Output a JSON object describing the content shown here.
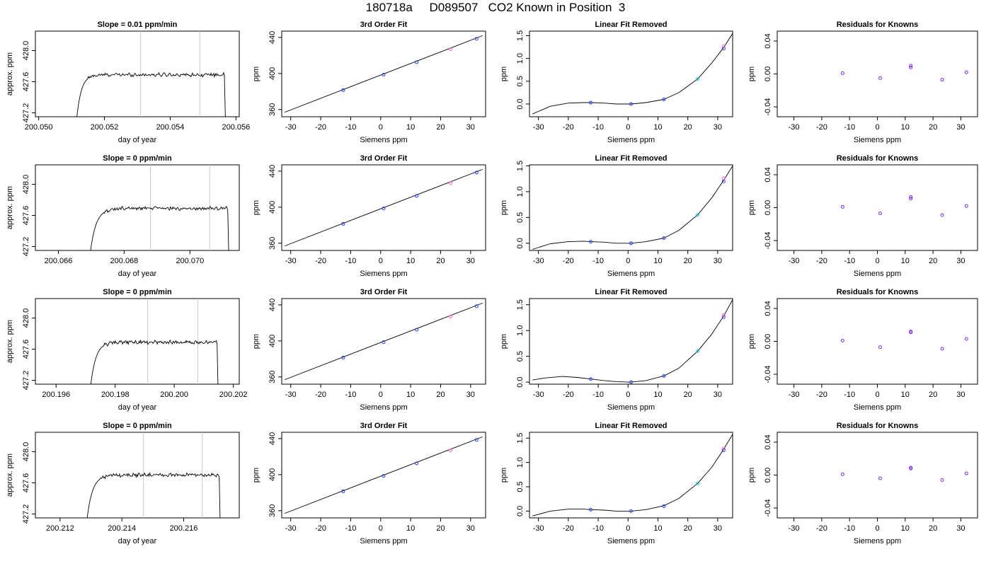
{
  "title": "180718a     D089507   CO2 Known in Position  3",
  "chart_data": [
    {
      "type": "line",
      "row": 1,
      "panel": "timeseries",
      "title": "Slope =  0.01  ppm/min",
      "xlabel": "day of year",
      "ylabel": "approx. ppm",
      "xlim": [
        200.0499,
        200.0561
      ],
      "ylim": [
        427.15,
        428.25
      ],
      "xticks": [
        "200.050",
        "200.052",
        "200.054",
        "200.056"
      ],
      "yticks": [
        "427.2",
        "427.6",
        "428.0"
      ],
      "start": 200.0511,
      "rise_end": 200.0515,
      "plateau_end": 200.05565,
      "end": 200.0557,
      "plateau_level": 427.69,
      "vlines": [
        200.0531,
        200.0549
      ]
    },
    {
      "type": "scatter",
      "row": 1,
      "panel": "fit",
      "title": "3rd Order Fit",
      "xlabel": "Siemens ppm",
      "ylabel": "ppm",
      "xlim": [
        -33,
        35
      ],
      "ylim": [
        352,
        447
      ],
      "xticks": [
        "-30",
        "-20",
        "-10",
        "0",
        "10",
        "20",
        "30"
      ],
      "yticks": [
        "360",
        "400",
        "440"
      ],
      "points_x": [
        -12.5,
        1,
        12,
        23.3,
        32
      ],
      "points_y": [
        381.5,
        398.6,
        412.5,
        427,
        438.5
      ],
      "fit_line_x": [
        -32,
        34
      ],
      "fit_line_y": [
        357,
        442
      ]
    },
    {
      "type": "scatter",
      "row": 1,
      "panel": "linear-removed",
      "title": "Linear Fit Removed",
      "xlabel": "Siemens ppm",
      "ylabel": "ppm",
      "xlim": [
        -33,
        35
      ],
      "ylim": [
        -0.28,
        1.6
      ],
      "xticks": [
        "-30",
        "-20",
        "-10",
        "0",
        "10",
        "20",
        "30"
      ],
      "yticks": [
        "0.0",
        "0.5",
        "1.0",
        "1.5"
      ],
      "points_x": [
        -12.5,
        1,
        12,
        23.3,
        32
      ],
      "points_y": [
        0.03,
        0.0,
        0.1,
        0.55,
        1.22
      ],
      "extra_points_x": [
        32
      ],
      "extra_points_y": [
        1.27
      ],
      "curve_x": [
        -32,
        -26,
        -20,
        -15,
        -12.5,
        -8,
        -4,
        1,
        6,
        12,
        17,
        23.3,
        28,
        32,
        35
      ],
      "curve_y": [
        -0.22,
        -0.05,
        0.02,
        0.03,
        0.03,
        0.02,
        0.0,
        0.0,
        0.03,
        0.1,
        0.25,
        0.55,
        0.9,
        1.24,
        1.55
      ]
    },
    {
      "type": "scatter",
      "row": 1,
      "panel": "residuals",
      "title": "Residuals for Knowns",
      "xlabel": "Siemens ppm",
      "ylabel": "ppm",
      "xlim": [
        -36,
        36
      ],
      "ylim": [
        -0.052,
        0.052
      ],
      "xticks": [
        "-30",
        "-20",
        "-10",
        "0",
        "10",
        "20",
        "30"
      ],
      "yticks": [
        "-0.04",
        "0.00",
        "0.04"
      ],
      "points_x": [
        -12.5,
        1,
        12,
        23.3,
        32
      ],
      "points_y": [
        0.001,
        -0.005,
        0.008,
        -0.007,
        0.002
      ],
      "extra_points_x": [
        12
      ],
      "extra_points_y": [
        0.01
      ]
    },
    {
      "type": "line",
      "row": 2,
      "panel": "timeseries",
      "title": "Slope =  0  ppm/min",
      "xlabel": "day of year",
      "ylabel": "approx. ppm",
      "xlim": [
        200.0653,
        200.0715
      ],
      "ylim": [
        427.15,
        428.25
      ],
      "xticks": [
        "200.066",
        "200.068",
        "200.070"
      ],
      "yticks": [
        "427.2",
        "427.6",
        "428.0"
      ],
      "start": 200.0669,
      "rise_end": 200.0674,
      "plateau_end": 200.07115,
      "end": 200.0712,
      "plateau_level": 427.69,
      "vlines": [
        200.0688,
        200.0706
      ]
    },
    {
      "type": "scatter",
      "row": 2,
      "panel": "fit",
      "title": "3rd Order Fit",
      "xlabel": "Siemens ppm",
      "ylabel": "ppm",
      "xlim": [
        -33,
        35
      ],
      "ylim": [
        352,
        447
      ],
      "xticks": [
        "-30",
        "-20",
        "-10",
        "0",
        "10",
        "20",
        "30"
      ],
      "yticks": [
        "360",
        "400",
        "440"
      ],
      "points_x": [
        -12.5,
        1,
        12,
        23.3,
        32
      ],
      "points_y": [
        381.5,
        398.6,
        412.5,
        427,
        438.5
      ],
      "fit_line_x": [
        -32,
        34
      ],
      "fit_line_y": [
        357,
        442
      ]
    },
    {
      "type": "scatter",
      "row": 2,
      "panel": "linear-removed",
      "title": "Linear Fit Removed",
      "xlabel": "Siemens ppm",
      "ylabel": "ppm",
      "xlim": [
        -33,
        35
      ],
      "ylim": [
        -0.14,
        1.52
      ],
      "xticks": [
        "-30",
        "-20",
        "-10",
        "0",
        "10",
        "20",
        "30"
      ],
      "yticks": [
        "0.0",
        "0.5",
        "1.0",
        "1.5"
      ],
      "points_x": [
        -12.5,
        1,
        12,
        23.3,
        32
      ],
      "points_y": [
        0.03,
        0.0,
        0.1,
        0.55,
        1.2
      ],
      "extra_points_x": [
        32
      ],
      "extra_points_y": [
        1.26
      ],
      "curve_x": [
        -32,
        -26,
        -20,
        -15,
        -12.5,
        -8,
        -4,
        1,
        6,
        12,
        17,
        23.3,
        28,
        32,
        35
      ],
      "curve_y": [
        -0.12,
        -0.01,
        0.03,
        0.04,
        0.03,
        0.02,
        0.0,
        0.0,
        0.03,
        0.1,
        0.25,
        0.55,
        0.88,
        1.22,
        1.5
      ]
    },
    {
      "type": "scatter",
      "row": 2,
      "panel": "residuals",
      "title": "Residuals for Knowns",
      "xlabel": "Siemens ppm",
      "ylabel": "ppm",
      "xlim": [
        -36,
        36
      ],
      "ylim": [
        -0.052,
        0.052
      ],
      "xticks": [
        "-30",
        "-20",
        "-10",
        "0",
        "10",
        "20",
        "30"
      ],
      "yticks": [
        "-0.04",
        "0.00",
        "0.04"
      ],
      "points_x": [
        -12.5,
        1,
        12,
        23.3,
        32
      ],
      "points_y": [
        0.001,
        -0.007,
        0.011,
        -0.009,
        0.002
      ],
      "extra_points_x": [
        12
      ],
      "extra_points_y": [
        0.013
      ]
    },
    {
      "type": "line",
      "row": 3,
      "panel": "timeseries",
      "title": "Slope =  0  ppm/min",
      "xlabel": "day of year",
      "ylabel": "approx. ppm",
      "xlim": [
        200.1953,
        200.2022
      ],
      "ylim": [
        427.15,
        428.25
      ],
      "xticks": [
        "200.196",
        "200.198",
        "200.200",
        "200.202"
      ],
      "yticks": [
        "427.2",
        "427.6",
        "428.0"
      ],
      "start": 200.1971,
      "rise_end": 200.1976,
      "plateau_end": 200.20145,
      "end": 200.2015,
      "plateau_level": 427.69,
      "vlines": [
        200.1991,
        200.2008
      ]
    },
    {
      "type": "scatter",
      "row": 3,
      "panel": "fit",
      "title": "3rd Order Fit",
      "xlabel": "Siemens ppm",
      "ylabel": "ppm",
      "xlim": [
        -33,
        35
      ],
      "ylim": [
        352,
        447
      ],
      "xticks": [
        "-30",
        "-20",
        "-10",
        "0",
        "10",
        "20",
        "30"
      ],
      "yticks": [
        "360",
        "400",
        "440"
      ],
      "points_x": [
        -12.5,
        1,
        12,
        23.3,
        32
      ],
      "points_y": [
        381.5,
        398.6,
        412.5,
        427,
        438.5
      ],
      "fit_line_x": [
        -32,
        34
      ],
      "fit_line_y": [
        357,
        442
      ]
    },
    {
      "type": "scatter",
      "row": 3,
      "panel": "linear-removed",
      "title": "Linear Fit Removed",
      "xlabel": "Siemens ppm",
      "ylabel": "ppm",
      "xlim": [
        -33,
        35
      ],
      "ylim": [
        -0.04,
        1.62
      ],
      "xticks": [
        "-30",
        "-20",
        "-10",
        "0",
        "10",
        "20",
        "30"
      ],
      "yticks": [
        "0.0",
        "0.5",
        "1.0",
        "1.5"
      ],
      "points_x": [
        -12.5,
        1,
        12,
        23.3,
        32
      ],
      "points_y": [
        0.06,
        0.0,
        0.12,
        0.6,
        1.26
      ],
      "extra_points_x": [
        32
      ],
      "extra_points_y": [
        1.3
      ],
      "curve_x": [
        -32,
        -28,
        -22,
        -17,
        -12.5,
        -8,
        -4,
        1,
        6,
        12,
        17,
        23.3,
        28,
        32,
        35
      ],
      "curve_y": [
        0.04,
        0.08,
        0.11,
        0.09,
        0.06,
        0.03,
        0.01,
        0.0,
        0.03,
        0.12,
        0.27,
        0.6,
        0.93,
        1.28,
        1.6
      ]
    },
    {
      "type": "scatter",
      "row": 3,
      "panel": "residuals",
      "title": "Residuals for Knowns",
      "xlabel": "Siemens ppm",
      "ylabel": "ppm",
      "xlim": [
        -36,
        36
      ],
      "ylim": [
        -0.052,
        0.052
      ],
      "xticks": [
        "-30",
        "-20",
        "-10",
        "0",
        "10",
        "20",
        "30"
      ],
      "yticks": [
        "-0.04",
        "0.00",
        "0.04"
      ],
      "points_x": [
        -12.5,
        1,
        12,
        23.3,
        32
      ],
      "points_y": [
        0.001,
        -0.007,
        0.011,
        -0.009,
        0.003
      ],
      "extra_points_x": [
        12
      ],
      "extra_points_y": [
        0.012
      ]
    },
    {
      "type": "line",
      "row": 4,
      "panel": "timeseries",
      "title": "Slope =  0  ppm/min",
      "xlabel": "day of year",
      "ylabel": "approx. ppm",
      "xlim": [
        200.2112,
        200.2178
      ],
      "ylim": [
        427.15,
        428.25
      ],
      "xticks": [
        "200.212",
        "200.214",
        "200.216"
      ],
      "yticks": [
        "427.2",
        "427.6",
        "428.0"
      ],
      "start": 200.2128,
      "rise_end": 200.2133,
      "plateau_end": 200.21715,
      "end": 200.2172,
      "plateau_level": 427.7,
      "vlines": [
        200.2147,
        200.2166
      ]
    },
    {
      "type": "scatter",
      "row": 4,
      "panel": "fit",
      "title": "3rd Order Fit",
      "xlabel": "Siemens ppm",
      "ylabel": "ppm",
      "xlim": [
        -33,
        35
      ],
      "ylim": [
        352,
        447
      ],
      "xticks": [
        "-30",
        "-20",
        "-10",
        "0",
        "10",
        "20",
        "30"
      ],
      "yticks": [
        "360",
        "400",
        "440"
      ],
      "points_x": [
        -12.5,
        1,
        12,
        23.3,
        32
      ],
      "points_y": [
        381.5,
        398.6,
        412.5,
        427,
        438.5
      ],
      "fit_line_x": [
        -32,
        34
      ],
      "fit_line_y": [
        357,
        442
      ]
    },
    {
      "type": "scatter",
      "row": 4,
      "panel": "linear-removed",
      "title": "Linear Fit Removed",
      "xlabel": "Siemens ppm",
      "ylabel": "ppm",
      "xlim": [
        -33,
        35
      ],
      "ylim": [
        -0.14,
        1.62
      ],
      "xticks": [
        "-30",
        "-20",
        "-10",
        "0",
        "10",
        "20",
        "30"
      ],
      "yticks": [
        "0.0",
        "0.5",
        "1.0",
        "1.5"
      ],
      "points_x": [
        -12.5,
        1,
        12,
        23.3,
        32
      ],
      "points_y": [
        0.03,
        0.0,
        0.1,
        0.57,
        1.25
      ],
      "extra_points_x": [
        32
      ],
      "extra_points_y": [
        1.29
      ],
      "curve_x": [
        -32,
        -26,
        -20,
        -15,
        -12.5,
        -8,
        -4,
        1,
        6,
        12,
        17,
        23.3,
        28,
        32,
        35
      ],
      "curve_y": [
        -0.1,
        0.0,
        0.04,
        0.04,
        0.03,
        0.02,
        0.0,
        0.0,
        0.03,
        0.11,
        0.26,
        0.57,
        0.9,
        1.27,
        1.58
      ]
    },
    {
      "type": "scatter",
      "row": 4,
      "panel": "residuals",
      "title": "Residuals for Knowns",
      "xlabel": "Siemens ppm",
      "ylabel": "ppm",
      "xlim": [
        -36,
        36
      ],
      "ylim": [
        -0.052,
        0.052
      ],
      "xticks": [
        "-30",
        "-20",
        "-10",
        "0",
        "10",
        "20",
        "30"
      ],
      "yticks": [
        "-0.04",
        "0.00",
        "0.04"
      ],
      "points_x": [
        -12.5,
        1,
        12,
        23.3,
        32
      ],
      "points_y": [
        0.001,
        -0.004,
        0.008,
        -0.006,
        0.002
      ],
      "extra_points_x": [
        12
      ],
      "extra_points_y": [
        0.009
      ]
    }
  ],
  "colors": {
    "point_blue": "#1f3fff",
    "point_purple": "#7b2cf0",
    "point_pink": "#ff66cc",
    "point_cyan": "#1ec8e8",
    "vline": "#c8c8c8",
    "ink": "#000000"
  }
}
